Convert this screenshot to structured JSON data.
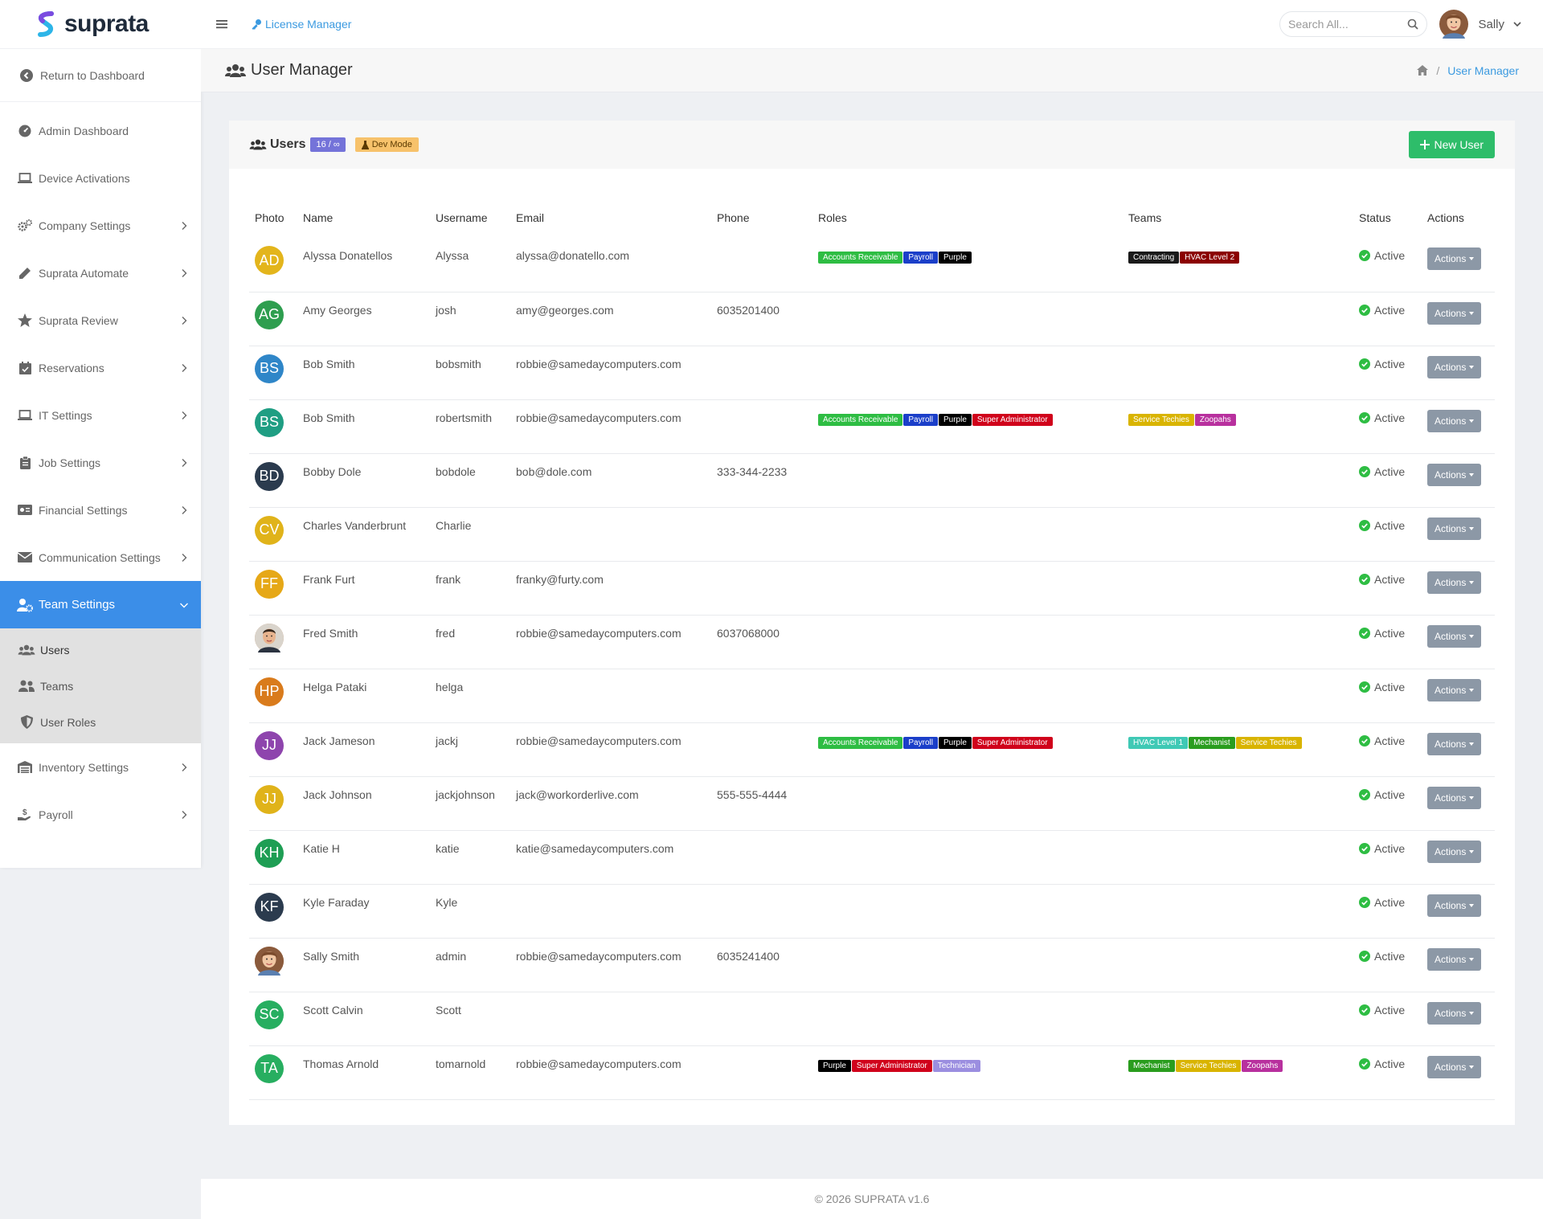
{
  "brand": {
    "name": "suprata"
  },
  "sidebar": {
    "return_label": "Return to Dashboard",
    "items": [
      {
        "label": "Admin Dashboard",
        "icon": "gauge-icon",
        "chevron": false
      },
      {
        "label": "Device Activations",
        "icon": "laptop-icon",
        "chevron": false
      },
      {
        "label": "Company Settings",
        "icon": "cogs-icon",
        "chevron": true
      },
      {
        "label": "Suprata Automate",
        "icon": "pencil-icon",
        "chevron": true
      },
      {
        "label": "Suprata Review",
        "icon": "star-icon",
        "chevron": true
      },
      {
        "label": "Reservations",
        "icon": "calendar-check-icon",
        "chevron": true
      },
      {
        "label": "IT Settings",
        "icon": "laptop-icon",
        "chevron": true
      },
      {
        "label": "Job Settings",
        "icon": "clipboard-icon",
        "chevron": true
      },
      {
        "label": "Financial Settings",
        "icon": "money-icon",
        "chevron": true
      },
      {
        "label": "Communication Settings",
        "icon": "envelope-icon",
        "chevron": true
      }
    ],
    "active_item": {
      "label": "Team Settings",
      "icon": "user-cog-icon"
    },
    "submenu": [
      {
        "label": "Users",
        "icon": "users-icon"
      },
      {
        "label": "Teams",
        "icon": "user-friends-icon"
      },
      {
        "label": "User Roles",
        "icon": "shield-icon"
      }
    ],
    "items_after": [
      {
        "label": "Inventory Settings",
        "icon": "warehouse-icon",
        "chevron": true
      },
      {
        "label": "Payroll",
        "icon": "hand-dollar-icon",
        "chevron": true
      }
    ]
  },
  "topbar": {
    "license_label": "License Manager",
    "search_placeholder": "Search All...",
    "user_name": "Sally"
  },
  "page": {
    "title": "User Manager",
    "breadcrumb_current": "User Manager"
  },
  "card": {
    "title": "Users",
    "count_badge": "16 / ∞",
    "dev_badge": "Dev Mode",
    "new_user_label": "New User"
  },
  "table": {
    "headers": [
      "Photo",
      "Name",
      "Username",
      "Email",
      "Phone",
      "Roles",
      "Teams",
      "Status",
      "Actions"
    ],
    "actions_label": "Actions",
    "rows": [
      {
        "initials": "AD",
        "avatar_color": "#e3b51c",
        "name": "Alyssa Donatellos",
        "username": "Alyssa",
        "email": "alyssa@donatello.com",
        "phone": "",
        "roles": [
          {
            "label": "Accounts Receivable",
            "color": "#2ebd43"
          },
          {
            "label": "Payroll",
            "color": "#1b3fc9"
          },
          {
            "label": "Purple",
            "color": "#000000"
          }
        ],
        "teams": [
          {
            "label": "Contracting",
            "color": "#1a1a1a"
          },
          {
            "label": "HVAC Level 2",
            "color": "#8b0000"
          }
        ],
        "status": "Active"
      },
      {
        "initials": "AG",
        "avatar_color": "#2e9e4f",
        "name": "Amy Georges",
        "username": "josh",
        "email": "amy@georges.com",
        "phone": "6035201400",
        "roles": [],
        "teams": [],
        "status": "Active"
      },
      {
        "initials": "BS",
        "avatar_color": "#2f86c8",
        "name": "Bob Smith",
        "username": "bobsmith",
        "email": "robbie@samedaycomputers.com",
        "phone": "",
        "roles": [],
        "teams": [],
        "status": "Active"
      },
      {
        "initials": "BS",
        "avatar_color": "#1f9e83",
        "name": "Bob Smith",
        "username": "robertsmith",
        "email": "robbie@samedaycomputers.com",
        "phone": "",
        "roles": [
          {
            "label": "Accounts Receivable",
            "color": "#2ebd43"
          },
          {
            "label": "Payroll",
            "color": "#1b3fc9"
          },
          {
            "label": "Purple",
            "color": "#000000"
          },
          {
            "label": "Super Administrator",
            "color": "#d0021b"
          }
        ],
        "teams": [
          {
            "label": "Service Techies",
            "color": "#d9b400"
          },
          {
            "label": "Zoopahs",
            "color": "#b8309e"
          }
        ],
        "status": "Active"
      },
      {
        "initials": "BD",
        "avatar_color": "#2b3b4e",
        "name": "Bobby Dole",
        "username": "bobdole",
        "email": "bob@dole.com",
        "phone": "333-344-2233",
        "roles": [],
        "teams": [],
        "status": "Active"
      },
      {
        "initials": "CV",
        "avatar_color": "#e0b31a",
        "name": "Charles Vanderbrunt",
        "username": "Charlie",
        "email": "",
        "phone": "",
        "roles": [],
        "teams": [],
        "status": "Active"
      },
      {
        "initials": "FF",
        "avatar_color": "#e6a817",
        "name": "Frank Furt",
        "username": "frank",
        "email": "franky@furty.com",
        "phone": "",
        "roles": [],
        "teams": [],
        "status": "Active"
      },
      {
        "initials": "",
        "avatar_color": "#c98a5b",
        "photo": "man",
        "name": "Fred Smith",
        "username": "fred",
        "email": "robbie@samedaycomputers.com",
        "phone": "6037068000",
        "roles": [],
        "teams": [],
        "status": "Active"
      },
      {
        "initials": "HP",
        "avatar_color": "#d97b1c",
        "name": "Helga Pataki",
        "username": "helga",
        "email": "",
        "phone": "",
        "roles": [],
        "teams": [],
        "status": "Active"
      },
      {
        "initials": "JJ",
        "avatar_color": "#8e44ad",
        "name": "Jack Jameson",
        "username": "jackj",
        "email": "robbie@samedaycomputers.com",
        "phone": "",
        "roles": [
          {
            "label": "Accounts Receivable",
            "color": "#2ebd43"
          },
          {
            "label": "Payroll",
            "color": "#1b3fc9"
          },
          {
            "label": "Purple",
            "color": "#000000"
          },
          {
            "label": "Super Administrator",
            "color": "#d0021b"
          }
        ],
        "teams": [
          {
            "label": "HVAC Level 1",
            "color": "#3fc9b5"
          },
          {
            "label": "Mechanist",
            "color": "#2a9d1e"
          },
          {
            "label": "Service Techies",
            "color": "#d9b400"
          }
        ],
        "status": "Active"
      },
      {
        "initials": "JJ",
        "avatar_color": "#e0b31a",
        "name": "Jack Johnson",
        "username": "jackjohnson",
        "email": "jack@workorderlive.com",
        "phone": "555-555-4444",
        "roles": [],
        "teams": [],
        "status": "Active"
      },
      {
        "initials": "KH",
        "avatar_color": "#1e9e54",
        "name": "Katie H",
        "username": "katie",
        "email": "katie@samedaycomputers.com",
        "phone": "",
        "roles": [],
        "teams": [],
        "status": "Active"
      },
      {
        "initials": "KF",
        "avatar_color": "#2b3b4e",
        "name": "Kyle Faraday",
        "username": "Kyle",
        "email": "",
        "phone": "",
        "roles": [],
        "teams": [],
        "status": "Active"
      },
      {
        "initials": "",
        "avatar_color": "#c98a5b",
        "photo": "woman",
        "name": "Sally Smith",
        "username": "admin",
        "email": "robbie@samedaycomputers.com",
        "phone": "6035241400",
        "roles": [],
        "teams": [],
        "status": "Active"
      },
      {
        "initials": "SC",
        "avatar_color": "#27ae60",
        "name": "Scott Calvin",
        "username": "Scott",
        "email": "",
        "phone": "",
        "roles": [],
        "teams": [],
        "status": "Active"
      },
      {
        "initials": "TA",
        "avatar_color": "#27ae60",
        "name": "Thomas Arnold",
        "username": "tomarnold",
        "email": "robbie@samedaycomputers.com",
        "phone": "",
        "roles": [
          {
            "label": "Purple",
            "color": "#000000"
          },
          {
            "label": "Super Administrator",
            "color": "#d0021b"
          },
          {
            "label": "Technician",
            "color": "#9b8ee0"
          }
        ],
        "teams": [
          {
            "label": "Mechanist",
            "color": "#2a9d1e"
          },
          {
            "label": "Service Techies",
            "color": "#d9b400"
          },
          {
            "label": "Zoopahs",
            "color": "#b8309e"
          }
        ],
        "status": "Active"
      }
    ]
  },
  "footer": {
    "text": "© 2026 SUPRATA v1.6"
  },
  "colors": {
    "primary": "#3b8ee8",
    "success": "#2ebd6a",
    "link": "#3b9ae0",
    "status_active": "#2ebd43"
  }
}
